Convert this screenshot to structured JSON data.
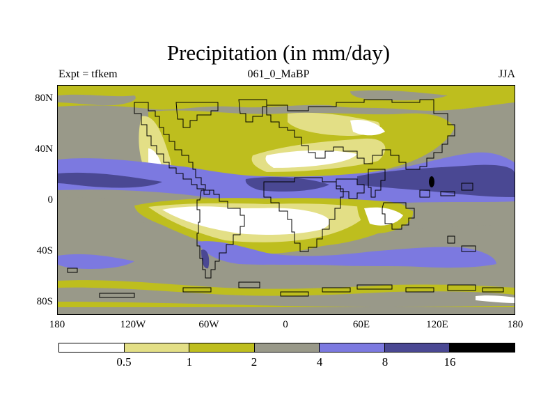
{
  "title": "Precipitation (in mm/day)",
  "subtitle_left": "Expt = tfkem",
  "subtitle_center": "061_0_MaBP",
  "subtitle_right": "JJA",
  "y_axis": {
    "ticks": [
      "80N",
      "40N",
      "0",
      "40S",
      "80S"
    ]
  },
  "x_axis": {
    "ticks": [
      "180",
      "120W",
      "60W",
      "0",
      "60E",
      "120E",
      "180"
    ]
  },
  "colors": {
    "white": "#ffffff",
    "pale_yellow": "#e3df86",
    "olive": "#bebe1e",
    "grey": "#999989",
    "light_blue": "#7c79e0",
    "navy": "#4a4893",
    "black": "#000000"
  },
  "colorbar": {
    "levels": [
      "0.5",
      "1",
      "2",
      "4",
      "8",
      "16"
    ],
    "colors": [
      "#ffffff",
      "#e3df86",
      "#bebe1e",
      "#999989",
      "#7c79e0",
      "#4a4893",
      "#000000"
    ]
  }
}
